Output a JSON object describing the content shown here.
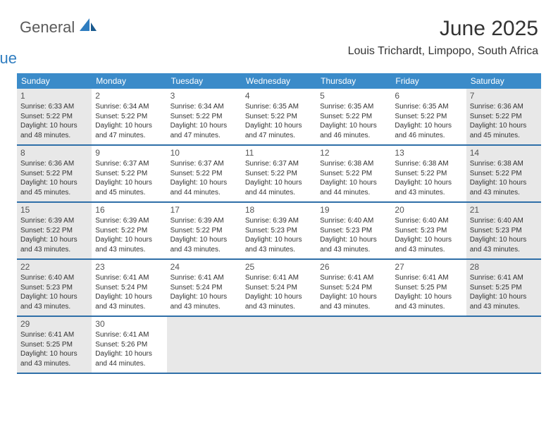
{
  "logo": {
    "text1": "General",
    "text2": "Blue"
  },
  "title": "June 2025",
  "location": "Louis Trichardt, Limpopo, South Africa",
  "colors": {
    "header_bg": "#3b8bc9",
    "header_text": "#ffffff",
    "row_border": "#2f6fa8",
    "dim_bg": "#e8e8e8",
    "body_text": "#333333",
    "logo_gray": "#5a5a5a",
    "logo_blue": "#2f7dc0"
  },
  "weekdays": [
    "Sunday",
    "Monday",
    "Tuesday",
    "Wednesday",
    "Thursday",
    "Friday",
    "Saturday"
  ],
  "weeks": [
    [
      {
        "n": "1",
        "dim": true,
        "sunrise": "6:33 AM",
        "sunset": "5:22 PM",
        "dayH": "10",
        "dayM": "48"
      },
      {
        "n": "2",
        "dim": false,
        "sunrise": "6:34 AM",
        "sunset": "5:22 PM",
        "dayH": "10",
        "dayM": "47"
      },
      {
        "n": "3",
        "dim": false,
        "sunrise": "6:34 AM",
        "sunset": "5:22 PM",
        "dayH": "10",
        "dayM": "47"
      },
      {
        "n": "4",
        "dim": false,
        "sunrise": "6:35 AM",
        "sunset": "5:22 PM",
        "dayH": "10",
        "dayM": "47"
      },
      {
        "n": "5",
        "dim": false,
        "sunrise": "6:35 AM",
        "sunset": "5:22 PM",
        "dayH": "10",
        "dayM": "46"
      },
      {
        "n": "6",
        "dim": false,
        "sunrise": "6:35 AM",
        "sunset": "5:22 PM",
        "dayH": "10",
        "dayM": "46"
      },
      {
        "n": "7",
        "dim": true,
        "sunrise": "6:36 AM",
        "sunset": "5:22 PM",
        "dayH": "10",
        "dayM": "45"
      }
    ],
    [
      {
        "n": "8",
        "dim": true,
        "sunrise": "6:36 AM",
        "sunset": "5:22 PM",
        "dayH": "10",
        "dayM": "45"
      },
      {
        "n": "9",
        "dim": false,
        "sunrise": "6:37 AM",
        "sunset": "5:22 PM",
        "dayH": "10",
        "dayM": "45"
      },
      {
        "n": "10",
        "dim": false,
        "sunrise": "6:37 AM",
        "sunset": "5:22 PM",
        "dayH": "10",
        "dayM": "44"
      },
      {
        "n": "11",
        "dim": false,
        "sunrise": "6:37 AM",
        "sunset": "5:22 PM",
        "dayH": "10",
        "dayM": "44"
      },
      {
        "n": "12",
        "dim": false,
        "sunrise": "6:38 AM",
        "sunset": "5:22 PM",
        "dayH": "10",
        "dayM": "44"
      },
      {
        "n": "13",
        "dim": false,
        "sunrise": "6:38 AM",
        "sunset": "5:22 PM",
        "dayH": "10",
        "dayM": "43"
      },
      {
        "n": "14",
        "dim": true,
        "sunrise": "6:38 AM",
        "sunset": "5:22 PM",
        "dayH": "10",
        "dayM": "43"
      }
    ],
    [
      {
        "n": "15",
        "dim": true,
        "sunrise": "6:39 AM",
        "sunset": "5:22 PM",
        "dayH": "10",
        "dayM": "43"
      },
      {
        "n": "16",
        "dim": false,
        "sunrise": "6:39 AM",
        "sunset": "5:22 PM",
        "dayH": "10",
        "dayM": "43"
      },
      {
        "n": "17",
        "dim": false,
        "sunrise": "6:39 AM",
        "sunset": "5:22 PM",
        "dayH": "10",
        "dayM": "43"
      },
      {
        "n": "18",
        "dim": false,
        "sunrise": "6:39 AM",
        "sunset": "5:23 PM",
        "dayH": "10",
        "dayM": "43"
      },
      {
        "n": "19",
        "dim": false,
        "sunrise": "6:40 AM",
        "sunset": "5:23 PM",
        "dayH": "10",
        "dayM": "43"
      },
      {
        "n": "20",
        "dim": false,
        "sunrise": "6:40 AM",
        "sunset": "5:23 PM",
        "dayH": "10",
        "dayM": "43"
      },
      {
        "n": "21",
        "dim": true,
        "sunrise": "6:40 AM",
        "sunset": "5:23 PM",
        "dayH": "10",
        "dayM": "43"
      }
    ],
    [
      {
        "n": "22",
        "dim": true,
        "sunrise": "6:40 AM",
        "sunset": "5:23 PM",
        "dayH": "10",
        "dayM": "43"
      },
      {
        "n": "23",
        "dim": false,
        "sunrise": "6:41 AM",
        "sunset": "5:24 PM",
        "dayH": "10",
        "dayM": "43"
      },
      {
        "n": "24",
        "dim": false,
        "sunrise": "6:41 AM",
        "sunset": "5:24 PM",
        "dayH": "10",
        "dayM": "43"
      },
      {
        "n": "25",
        "dim": false,
        "sunrise": "6:41 AM",
        "sunset": "5:24 PM",
        "dayH": "10",
        "dayM": "43"
      },
      {
        "n": "26",
        "dim": false,
        "sunrise": "6:41 AM",
        "sunset": "5:24 PM",
        "dayH": "10",
        "dayM": "43"
      },
      {
        "n": "27",
        "dim": false,
        "sunrise": "6:41 AM",
        "sunset": "5:25 PM",
        "dayH": "10",
        "dayM": "43"
      },
      {
        "n": "28",
        "dim": true,
        "sunrise": "6:41 AM",
        "sunset": "5:25 PM",
        "dayH": "10",
        "dayM": "43"
      }
    ],
    [
      {
        "n": "29",
        "dim": true,
        "sunrise": "6:41 AM",
        "sunset": "5:25 PM",
        "dayH": "10",
        "dayM": "43"
      },
      {
        "n": "30",
        "dim": false,
        "sunrise": "6:41 AM",
        "sunset": "5:26 PM",
        "dayH": "10",
        "dayM": "44"
      },
      null,
      null,
      null,
      null,
      null
    ]
  ],
  "labels": {
    "sunrise_prefix": "Sunrise: ",
    "sunset_prefix": "Sunset: ",
    "daylight_prefix": "Daylight: ",
    "hours_word": " hours",
    "and_word": "and ",
    "minutes_word": " minutes."
  }
}
